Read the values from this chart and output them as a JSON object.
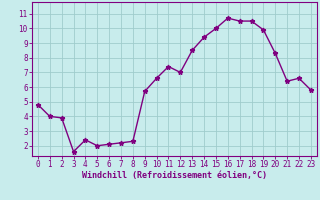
{
  "x": [
    0,
    1,
    2,
    3,
    4,
    5,
    6,
    7,
    8,
    9,
    10,
    11,
    12,
    13,
    14,
    15,
    16,
    17,
    18,
    19,
    20,
    21,
    22,
    23
  ],
  "y": [
    4.8,
    4.0,
    3.9,
    1.6,
    2.4,
    2.0,
    2.1,
    2.2,
    2.3,
    5.7,
    6.6,
    7.4,
    7.0,
    8.5,
    9.4,
    10.0,
    10.7,
    10.5,
    10.5,
    9.9,
    8.3,
    6.4,
    6.6,
    5.8
  ],
  "line_color": "#800080",
  "marker": "*",
  "marker_size": 3.5,
  "line_width": 1.0,
  "bg_color": "#c8ecec",
  "grid_color": "#a0cccc",
  "xlabel": "Windchill (Refroidissement éolien,°C)",
  "xlabel_color": "#800080",
  "yticks": [
    2,
    3,
    4,
    5,
    6,
    7,
    8,
    9,
    10,
    11
  ],
  "xtick_labels": [
    "0",
    "1",
    "2",
    "3",
    "4",
    "5",
    "6",
    "7",
    "8",
    "9",
    "10",
    "11",
    "12",
    "13",
    "14",
    "15",
    "16",
    "17",
    "18",
    "19",
    "20",
    "21",
    "22",
    "23"
  ],
  "xlim": [
    -0.5,
    23.5
  ],
  "ylim": [
    1.3,
    11.8
  ],
  "tick_color": "#800080",
  "axis_color": "#800080",
  "tick_fontsize": 5.5,
  "xlabel_fontsize": 6.0
}
